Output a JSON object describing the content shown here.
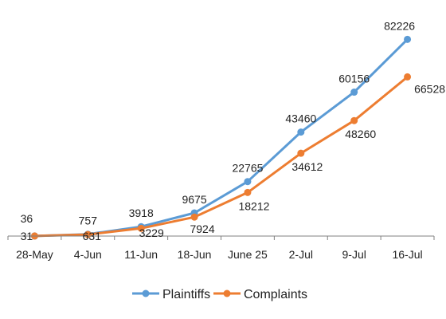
{
  "chart_data": {
    "type": "line",
    "categories": [
      "28-May",
      "4-Jun",
      "11-Jun",
      "18-Jun",
      "June 25",
      "2-Jul",
      "9-Jul",
      "16-Jul"
    ],
    "series": [
      {
        "name": "Plaintiffs",
        "color": "#5B9BD5",
        "values": [
          36,
          757,
          3918,
          9675,
          22765,
          43460,
          60156,
          82226
        ]
      },
      {
        "name": "Complaints",
        "color": "#ED7D31",
        "values": [
          31,
          631,
          3229,
          7924,
          18212,
          34612,
          48260,
          66528
        ]
      }
    ],
    "ylim": [
      0,
      90000
    ],
    "grid": false,
    "legend_position": "bottom"
  }
}
